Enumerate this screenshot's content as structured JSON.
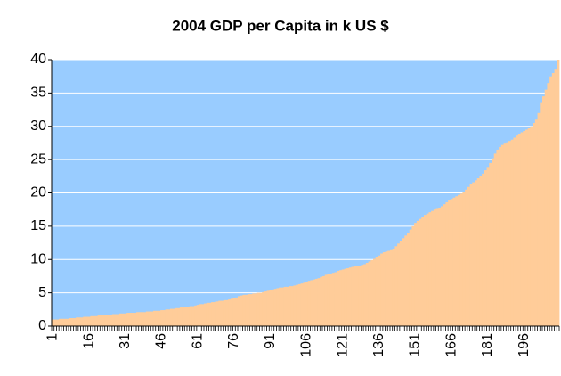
{
  "chart_data": {
    "type": "bar",
    "title": "2004 GDP per Capita in k US $",
    "categories": [
      1,
      null,
      null,
      null,
      null,
      null,
      null,
      null,
      null,
      null,
      null,
      null,
      null,
      null,
      null,
      16,
      null,
      null,
      null,
      null,
      null,
      null,
      null,
      null,
      null,
      null,
      null,
      null,
      null,
      null,
      31,
      null,
      null,
      null,
      null,
      null,
      null,
      null,
      null,
      null,
      null,
      null,
      null,
      null,
      null,
      46,
      null,
      null,
      null,
      null,
      null,
      null,
      null,
      null,
      null,
      null,
      null,
      null,
      null,
      null,
      61,
      null,
      null,
      null,
      null,
      null,
      null,
      null,
      null,
      null,
      null,
      null,
      null,
      null,
      null,
      76,
      null,
      null,
      null,
      null,
      null,
      null,
      null,
      null,
      null,
      null,
      null,
      null,
      null,
      null,
      91,
      null,
      null,
      null,
      null,
      null,
      null,
      null,
      null,
      null,
      null,
      null,
      null,
      null,
      null,
      106,
      null,
      null,
      null,
      null,
      null,
      null,
      null,
      null,
      null,
      null,
      null,
      null,
      null,
      null,
      121,
      null,
      null,
      null,
      null,
      null,
      null,
      null,
      null,
      null,
      null,
      null,
      null,
      null,
      null,
      136,
      null,
      null,
      null,
      null,
      null,
      null,
      null,
      null,
      null,
      null,
      null,
      null,
      null,
      null,
      151,
      null,
      null,
      null,
      null,
      null,
      null,
      null,
      null,
      null,
      null,
      null,
      null,
      null,
      null,
      166,
      null,
      null,
      null,
      null,
      null,
      null,
      null,
      null,
      null,
      null,
      null,
      null,
      null,
      null,
      181,
      null,
      null,
      null,
      null,
      null,
      null,
      null,
      null,
      null,
      null,
      null,
      null,
      null,
      null,
      196,
      null,
      null,
      null,
      null,
      null,
      null,
      null,
      null,
      null,
      null,
      null,
      null,
      null,
      null
    ],
    "values": [
      1.0,
      1.0,
      1.0,
      1.1,
      1.1,
      1.1,
      1.1,
      1.2,
      1.2,
      1.2,
      1.3,
      1.3,
      1.3,
      1.4,
      1.4,
      1.4,
      1.5,
      1.5,
      1.5,
      1.6,
      1.6,
      1.6,
      1.7,
      1.7,
      1.7,
      1.8,
      1.8,
      1.8,
      1.9,
      1.9,
      1.9,
      2.0,
      2.0,
      2.0,
      2.0,
      2.1,
      2.1,
      2.1,
      2.1,
      2.2,
      2.2,
      2.2,
      2.3,
      2.3,
      2.3,
      2.4,
      2.4,
      2.5,
      2.5,
      2.6,
      2.6,
      2.7,
      2.7,
      2.8,
      2.8,
      2.9,
      2.9,
      3.0,
      3.0,
      3.1,
      3.2,
      3.3,
      3.3,
      3.4,
      3.5,
      3.5,
      3.6,
      3.6,
      3.7,
      3.8,
      3.8,
      3.9,
      3.9,
      4.0,
      4.1,
      4.2,
      4.3,
      4.5,
      4.6,
      4.7,
      4.7,
      4.8,
      4.8,
      4.9,
      4.9,
      5.0,
      5.0,
      5.1,
      5.2,
      5.3,
      5.4,
      5.5,
      5.6,
      5.7,
      5.8,
      5.8,
      5.9,
      5.9,
      6.0,
      6.0,
      6.1,
      6.2,
      6.3,
      6.4,
      6.5,
      6.6,
      6.8,
      6.9,
      7.0,
      7.1,
      7.2,
      7.4,
      7.5,
      7.7,
      7.8,
      7.9,
      8.0,
      8.1,
      8.3,
      8.4,
      8.5,
      8.6,
      8.7,
      8.8,
      8.9,
      9.0,
      9.0,
      9.1,
      9.2,
      9.3,
      9.5,
      9.7,
      9.9,
      10.1,
      10.3,
      10.6,
      10.9,
      11.1,
      11.2,
      11.3,
      11.4,
      11.6,
      12.0,
      12.4,
      12.8,
      13.2,
      13.6,
      14.0,
      14.5,
      15.0,
      15.5,
      15.8,
      16.1,
      16.4,
      16.7,
      16.9,
      17.1,
      17.3,
      17.5,
      17.6,
      17.8,
      18.0,
      18.3,
      18.6,
      18.9,
      19.1,
      19.3,
      19.5,
      19.7,
      19.9,
      20.1,
      20.5,
      20.9,
      21.3,
      21.6,
      21.9,
      22.2,
      22.5,
      22.9,
      23.4,
      23.9,
      24.5,
      25.2,
      25.9,
      26.5,
      26.9,
      27.2,
      27.4,
      27.6,
      27.8,
      28.0,
      28.3,
      28.6,
      28.9,
      29.1,
      29.3,
      29.5,
      29.7,
      30.0,
      30.5,
      31.0,
      32.0,
      33.5,
      34.5,
      35.5,
      36.5,
      37.5,
      38.0,
      38.5,
      40.0
    ],
    "color": "#ffcc99",
    "plot_background": "#99ccff",
    "ylim": [
      0,
      40
    ],
    "yticks": [
      0,
      5,
      10,
      15,
      20,
      25,
      30,
      35,
      40
    ],
    "grid": true
  }
}
